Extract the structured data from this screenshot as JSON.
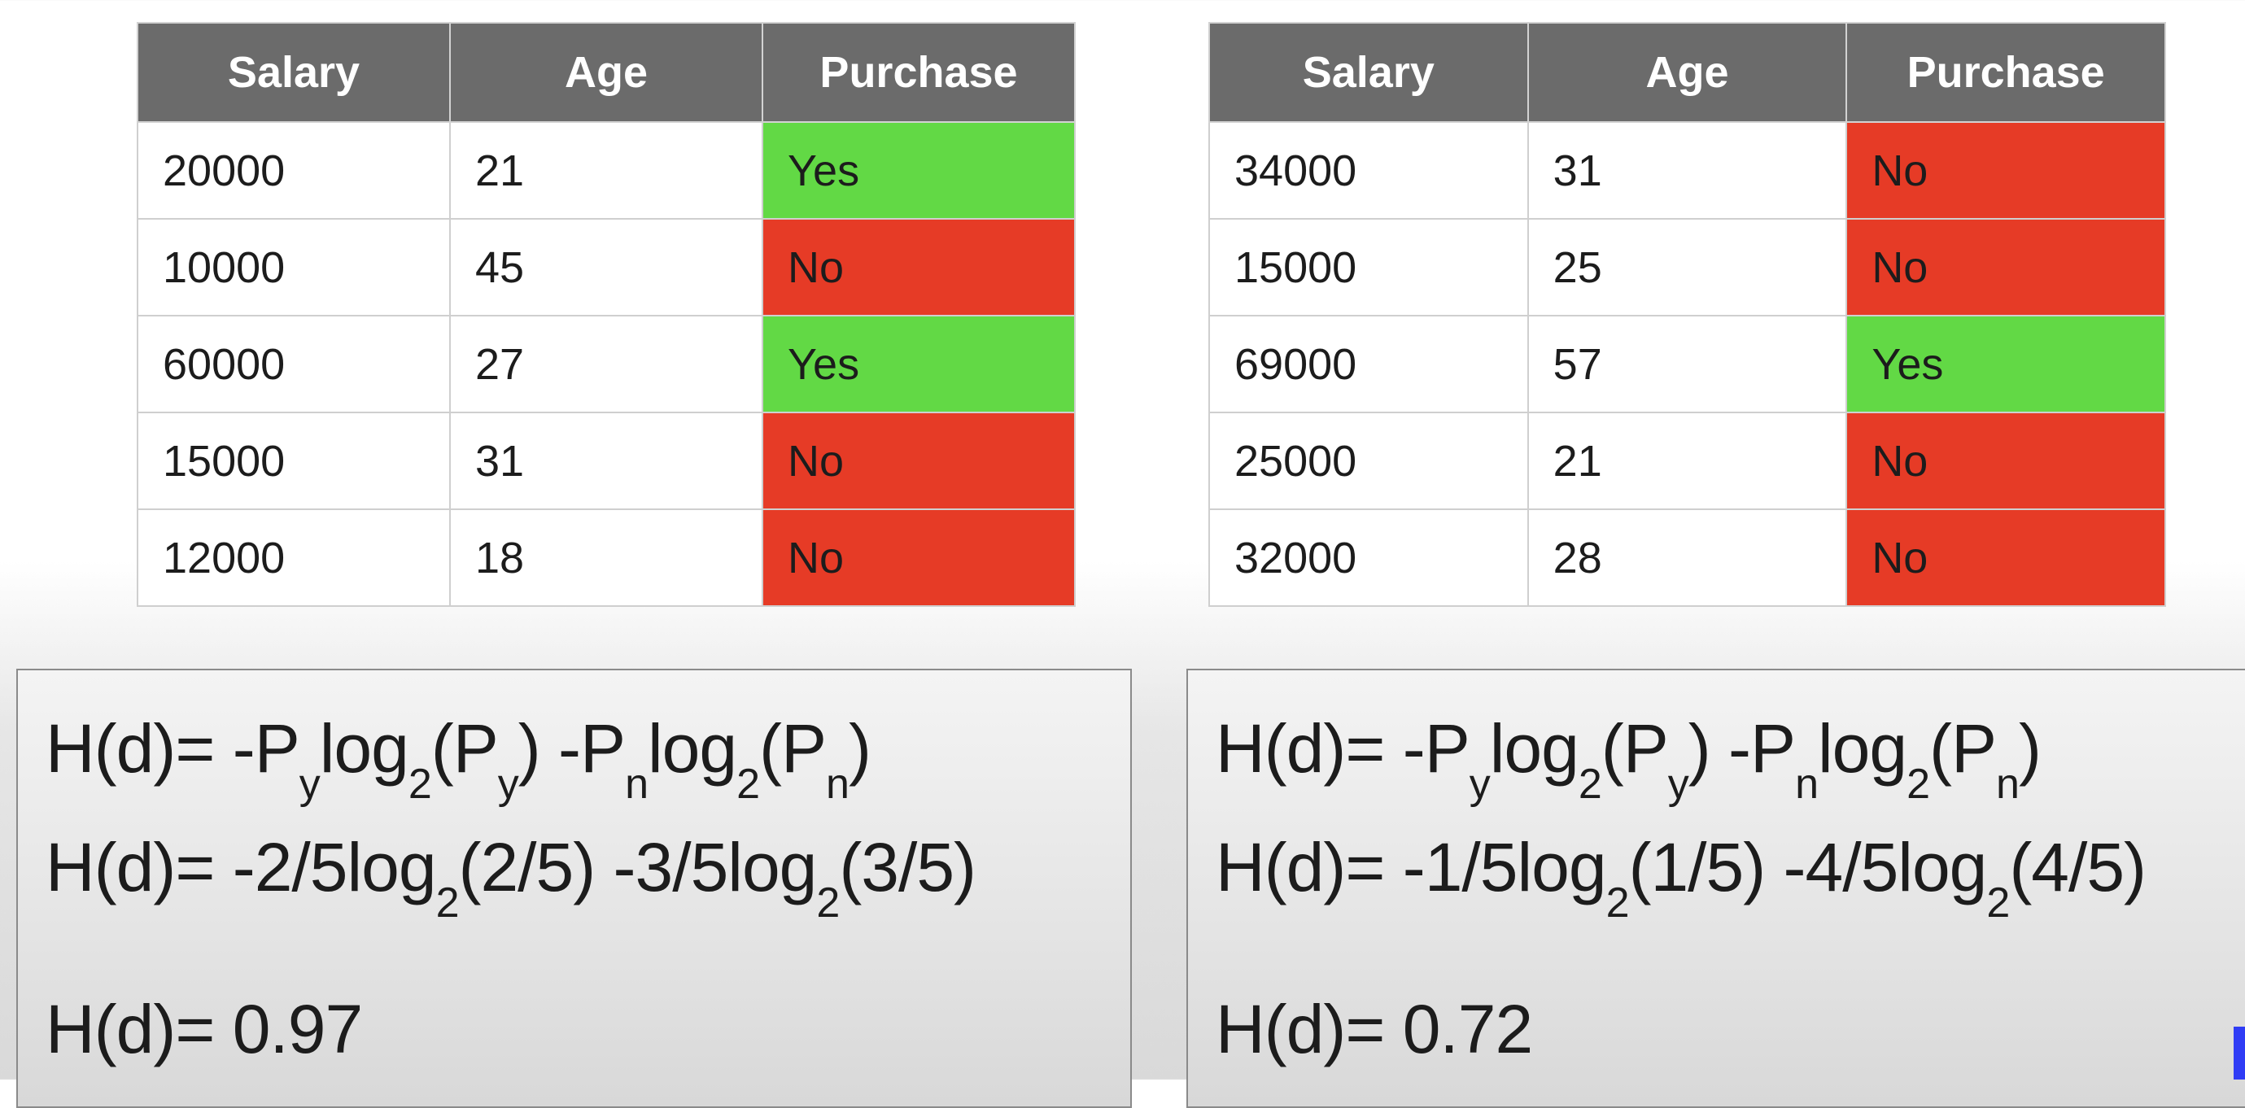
{
  "left_table": {
    "headers": [
      "Salary",
      "Age",
      "Purchase"
    ],
    "rows": [
      [
        "20000",
        "21",
        "Yes"
      ],
      [
        "10000",
        "45",
        "No"
      ],
      [
        "60000",
        "27",
        "Yes"
      ],
      [
        "15000",
        "31",
        "No"
      ],
      [
        "12000",
        "18",
        "No"
      ]
    ]
  },
  "right_table": {
    "headers": [
      "Salary",
      "Age",
      "Purchase"
    ],
    "rows": [
      [
        "34000",
        "31",
        "No"
      ],
      [
        "15000",
        "25",
        "No"
      ],
      [
        "69000",
        "57",
        "Yes"
      ],
      [
        "25000",
        "21",
        "No"
      ],
      [
        "32000",
        "28",
        "No"
      ]
    ]
  },
  "left_formulas": {
    "line1": {
      "a": "H(d)= -P",
      "sub1": "y",
      "b": "log",
      "sub2": "2",
      "c": "(P",
      "sub3": "y",
      "d": ") -P",
      "sub4": "n",
      "e": "log",
      "sub5": "2",
      "f": "(P",
      "sub6": "n",
      "g": ")"
    },
    "line2": {
      "a": "H(d)= -2/5log",
      "sub1": "2",
      "b": "(2/5) -3/5log",
      "sub2": "2",
      "c": "(3/5)"
    },
    "line3": "H(d)= 0.97"
  },
  "right_formulas": {
    "line1": {
      "a": "H(d)= -P",
      "sub1": "y",
      "b": "log",
      "sub2": "2",
      "c": "(P",
      "sub3": "y",
      "d": ") -P",
      "sub4": "n",
      "e": "log",
      "sub5": "2",
      "f": "(P",
      "sub6": "n",
      "g": ")"
    },
    "line2": {
      "a": "H(d)= -1/5log",
      "sub1": "2",
      "b": "(1/5) -4/5log",
      "sub2": "2",
      "c": "(4/5)"
    },
    "line3": "H(d)= 0.72"
  },
  "colors": {
    "header_bg": "#6b6b6b",
    "yes": "#62d945",
    "no": "#e63b26",
    "indicator": "#2f3cf5"
  }
}
